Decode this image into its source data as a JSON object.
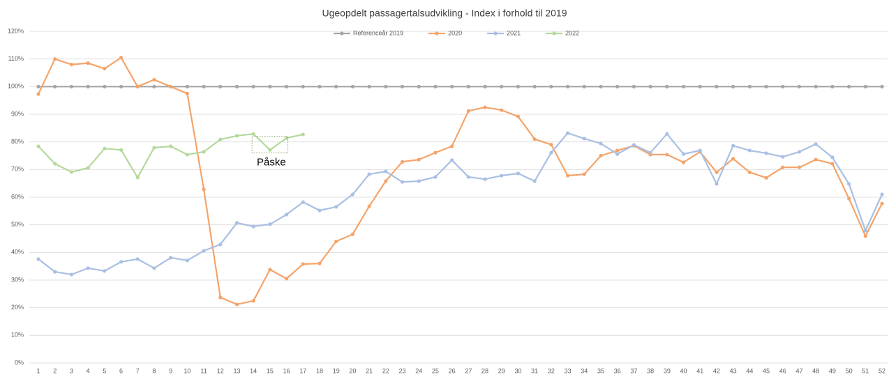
{
  "chart_data": {
    "type": "line",
    "title": "Ugeopdelt passagertalsudvikling - Index i forhold til 2019",
    "categories": [
      "1",
      "2",
      "3",
      "4",
      "5",
      "6",
      "7",
      "8",
      "9",
      "10",
      "11",
      "12",
      "13",
      "14",
      "15",
      "16",
      "17",
      "18",
      "19",
      "20",
      "21",
      "22",
      "23",
      "24",
      "25",
      "26",
      "27",
      "28",
      "29",
      "30",
      "31",
      "32",
      "33",
      "34",
      "35",
      "36",
      "37",
      "38",
      "39",
      "40",
      "41",
      "42",
      "43",
      "44",
      "45",
      "46",
      "47",
      "48",
      "49",
      "50",
      "51",
      "52"
    ],
    "series": [
      {
        "name": "Referenceår 2019",
        "color": "#a5a5a5",
        "values": [
          100,
          100,
          100,
          100,
          100,
          100,
          100,
          100,
          100,
          100,
          100,
          100,
          100,
          100,
          100,
          100,
          100,
          100,
          100,
          100,
          100,
          100,
          100,
          100,
          100,
          100,
          100,
          100,
          100,
          100,
          100,
          100,
          100,
          100,
          100,
          100,
          100,
          100,
          100,
          100,
          100,
          100,
          100,
          100,
          100,
          100,
          100,
          100,
          100,
          100,
          100,
          100
        ]
      },
      {
        "name": "2020",
        "color": "#f4a46a",
        "values": [
          97.3,
          110,
          108,
          108.5,
          106.5,
          110.5,
          100,
          102.5,
          100,
          97.5,
          62.8,
          23.7,
          21.2,
          22.5,
          33.8,
          30.5,
          35.8,
          36,
          44,
          46.6,
          56.7,
          65.8,
          72.8,
          73.6,
          76.1,
          78.4,
          91.2,
          92.5,
          91.5,
          89.2,
          81,
          79,
          67.8,
          68.3,
          75,
          76.9,
          78.6,
          75.4,
          75.4,
          72.6,
          76.4,
          69,
          73.9,
          69,
          67,
          70.8,
          70.8,
          73.6,
          72.1,
          59.5,
          45.9,
          57.7
        ]
      },
      {
        "name": "2021",
        "color": "#a9bfe3",
        "values": [
          37.6,
          33,
          32,
          34.3,
          33.3,
          36.6,
          37.6,
          34.3,
          38.1,
          37.1,
          40.6,
          42.9,
          50.7,
          49.4,
          50.2,
          53.7,
          58.2,
          55.2,
          56.5,
          61,
          68.3,
          69.3,
          65.5,
          65.8,
          67.3,
          73.4,
          67.3,
          66.5,
          67.8,
          68.6,
          65.8,
          76.1,
          83.2,
          81.2,
          79.4,
          75.6,
          78.9,
          76.1,
          82.9,
          75.6,
          76.9,
          64.8,
          78.6,
          76.9,
          75.9,
          74.6,
          76.4,
          79.2,
          74.4,
          64.8,
          47.9,
          61
        ]
      },
      {
        "name": "2022",
        "color": "#b5d99c",
        "values": [
          78.4,
          72.1,
          69.1,
          70.6,
          77.6,
          77.1,
          67.1,
          77.9,
          78.4,
          75.4,
          76.4,
          80.9,
          82.2,
          82.9,
          77.1,
          81.4,
          82.7,
          null,
          null,
          null,
          null,
          null,
          null,
          null,
          null,
          null,
          null,
          null,
          null,
          null,
          null,
          null,
          null,
          null,
          null,
          null,
          null,
          null,
          null,
          null,
          null,
          null,
          null,
          null,
          null,
          null,
          null,
          null,
          null,
          null,
          null,
          null
        ]
      }
    ],
    "ylim": [
      0,
      120
    ],
    "yticks": [
      {
        "value": 0,
        "label": "0%"
      },
      {
        "value": 10,
        "label": "10%"
      },
      {
        "value": 20,
        "label": "20%"
      },
      {
        "value": 30,
        "label": "30%"
      },
      {
        "value": 40,
        "label": "40%"
      },
      {
        "value": 50,
        "label": "50%"
      },
      {
        "value": 60,
        "label": "60%"
      },
      {
        "value": 70,
        "label": "70%"
      },
      {
        "value": 80,
        "label": "80%"
      },
      {
        "value": 90,
        "label": "90%"
      },
      {
        "value": 100,
        "label": "100%"
      },
      {
        "value": 110,
        "label": "110%"
      },
      {
        "value": 120,
        "label": "120%"
      }
    ],
    "grid": true,
    "legend": "top",
    "annotation": "Påske"
  }
}
